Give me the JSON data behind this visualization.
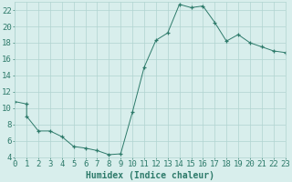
{
  "x": [
    0,
    1,
    1,
    2,
    3,
    4,
    5,
    6,
    7,
    8,
    9,
    10,
    11,
    12,
    13,
    14,
    15,
    16,
    17,
    18,
    19,
    20,
    21,
    22,
    23
  ],
  "y": [
    10.8,
    10.5,
    9.0,
    7.2,
    7.2,
    6.5,
    5.3,
    5.1,
    4.8,
    4.3,
    4.4,
    9.5,
    15.0,
    18.3,
    19.2,
    22.7,
    22.3,
    22.5,
    20.5,
    18.2,
    19.0,
    18.0,
    17.5,
    17.0,
    16.8
  ],
  "line_color": "#2d7a6a",
  "marker": "+",
  "marker_size": 3.5,
  "marker_lw": 0.9,
  "bg_color": "#d8eeec",
  "grid_color": "#b0d4d0",
  "axis_color": "#2d7a6a",
  "tick_color": "#2d7a6a",
  "xlabel": "Humidex (Indice chaleur)",
  "xlabel_fontsize": 7,
  "tick_fontsize": 6.5,
  "xlim": [
    0,
    23
  ],
  "ylim": [
    4,
    23
  ],
  "yticks": [
    4,
    6,
    8,
    10,
    12,
    14,
    16,
    18,
    20,
    22
  ],
  "xticks": [
    0,
    1,
    2,
    3,
    4,
    5,
    6,
    7,
    8,
    9,
    10,
    11,
    12,
    13,
    14,
    15,
    16,
    17,
    18,
    19,
    20,
    21,
    22,
    23
  ],
  "line_width": 0.7
}
